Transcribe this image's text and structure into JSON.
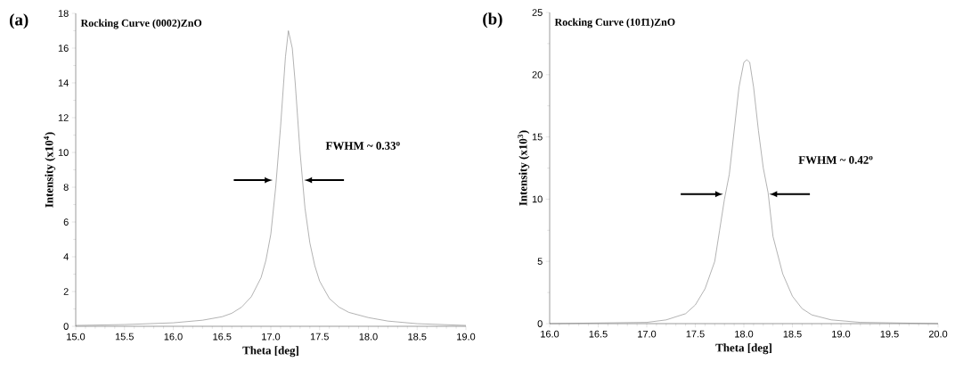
{
  "chart_data": [
    {
      "type": "line",
      "title": "Rocking Curve  (0002)ZnO",
      "xlabel": "Theta [deg]",
      "ylabel": "Intensity (x10$^{4}$)",
      "annotations": [
        "(a)",
        "FWHM ~ 0.33$^{o}$"
      ],
      "x": [
        15.0,
        15.5,
        16.0,
        16.3,
        16.5,
        16.6,
        16.7,
        16.8,
        16.9,
        16.95,
        17.0,
        17.05,
        17.1,
        17.15,
        17.18,
        17.22,
        17.25,
        17.3,
        17.35,
        17.4,
        17.45,
        17.5,
        17.6,
        17.7,
        17.8,
        18.0,
        18.2,
        18.5,
        19.0
      ],
      "series": [
        {
          "color": "#808080",
          "values": [
            0.05,
            0.1,
            0.2,
            0.35,
            0.55,
            0.75,
            1.1,
            1.7,
            2.8,
            3.8,
            5.3,
            8.0,
            11.5,
            15.5,
            17.0,
            16.0,
            14.0,
            10.0,
            6.8,
            4.8,
            3.5,
            2.6,
            1.6,
            1.1,
            0.8,
            0.5,
            0.3,
            0.15,
            0.05
          ]
        }
      ],
      "xlim": [
        15,
        19
      ],
      "ylim": [
        0,
        18
      ],
      "xticks": [
        {
          "value": 15,
          "label": "15.0"
        },
        {
          "value": 15.5,
          "label": "15.5"
        },
        {
          "value": 16,
          "label": "16.0"
        },
        {
          "value": 16.5,
          "label": "16.5"
        },
        {
          "value": 17,
          "label": "17.0"
        },
        {
          "value": 17.5,
          "label": "17.5"
        },
        {
          "value": 18,
          "label": "18.0"
        },
        {
          "value": 18.5,
          "label": "18.5"
        },
        {
          "value": 19,
          "label": "19.0"
        }
      ],
      "yticks": [
        0,
        2,
        4,
        6,
        8,
        10,
        12,
        14,
        16,
        18
      ],
      "marker": "none",
      "line_style": "solid"
    },
    {
      "type": "line",
      "title": "Rocking Curve  (101̄1)ZnO",
      "xlabel": "Theta [deg]",
      "ylabel": "Intensity (x10$^{3}$)",
      "annotations": [
        "(b)",
        "FWHM ~ 0.42$^{o}$"
      ],
      "x": [
        16.0,
        17.0,
        17.2,
        17.4,
        17.5,
        17.6,
        17.7,
        17.75,
        17.8,
        17.85,
        17.9,
        17.95,
        18.0,
        18.03,
        18.06,
        18.1,
        18.15,
        18.2,
        18.25,
        18.3,
        18.4,
        18.5,
        18.6,
        18.7,
        18.9,
        19.2,
        20.0
      ],
      "series": [
        {
          "color": "#808080",
          "values": [
            0.0,
            0.1,
            0.3,
            0.8,
            1.5,
            2.8,
            5.0,
            7.5,
            10.0,
            12.0,
            15.5,
            19.0,
            21.0,
            21.2,
            21.0,
            19.0,
            15.5,
            12.5,
            10.5,
            7.0,
            4.0,
            2.2,
            1.2,
            0.7,
            0.3,
            0.1,
            0.0
          ]
        }
      ],
      "xlim": [
        16,
        20
      ],
      "ylim": [
        0,
        25
      ],
      "xticks": [
        {
          "value": 16,
          "label": "16.0"
        },
        {
          "value": 16.5,
          "label": "16.5"
        },
        {
          "value": 17,
          "label": "17.0"
        },
        {
          "value": 17.5,
          "label": "17.5"
        },
        {
          "value": 18,
          "label": "18.0"
        },
        {
          "value": 18.5,
          "label": "18.5"
        },
        {
          "value": 19,
          "label": "19.0"
        },
        {
          "value": 19.5,
          "label": "19.5"
        },
        {
          "value": 20,
          "label": "20.0"
        }
      ],
      "yticks": [
        0,
        5,
        10,
        15,
        20,
        25
      ],
      "marker": "none",
      "line_style": "solid"
    }
  ]
}
